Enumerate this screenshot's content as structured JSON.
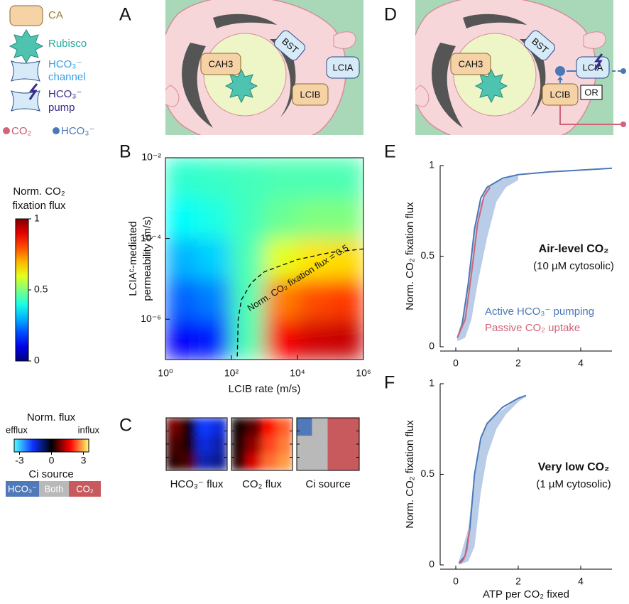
{
  "panel_labels": [
    "A",
    "B",
    "C",
    "D",
    "E",
    "F"
  ],
  "legend": {
    "ca": "CA",
    "rubisco": "Rubisco",
    "channel": [
      "HCO₃⁻",
      "channel"
    ],
    "pump": [
      "HCO₃⁻",
      "pump"
    ],
    "co2": "CO₂",
    "hco3": "HCO₃⁻"
  },
  "diagram_a": {
    "labels": [
      "CAH3",
      "BST",
      "LCIA",
      "LCIB"
    ]
  },
  "diagram_d": {
    "labels": [
      "CAH3",
      "BST",
      "LCIA",
      "LCIB"
    ],
    "or": "OR"
  },
  "colorbar": {
    "title": [
      "Norm. CO₂",
      "fixation flux"
    ],
    "lim": [
      0,
      1
    ],
    "ticks": [
      0,
      0.5,
      1
    ]
  },
  "flux_colorbar": {
    "title": "Norm. flux",
    "left": "efflux",
    "right": "influx",
    "lim": [
      -3.5,
      3.5
    ],
    "ticks": [
      -3,
      0,
      3
    ]
  },
  "ci_source": {
    "title": "Ci source",
    "categories": [
      "HCO₃⁻",
      "Both",
      "CO₂"
    ],
    "colors": [
      "#4f79b8",
      "#b9b9b9",
      "#c85a5e"
    ]
  },
  "chart_data": [
    {
      "type": "heatmap",
      "xlabel": "LCIB rate (m/s)",
      "ylabel": [
        "LCIAᶜ-mediated",
        "permeability (m/s)"
      ],
      "xlog": true,
      "ylog": true,
      "colormap": "jet",
      "xlim": [
        1,
        1000000
      ],
      "ylim": [
        1e-07,
        0.01
      ],
      "xticks": [
        {
          "value": 1,
          "label": "10⁰"
        },
        {
          "value": 100,
          "label": "10²"
        },
        {
          "value": 10000,
          "label": "10⁴"
        },
        {
          "value": 1000000,
          "label": "10⁶"
        }
      ],
      "yticks": [
        {
          "value": 1e-06,
          "label": "10⁻⁶"
        },
        {
          "value": 0.0001,
          "label": "10⁻⁴"
        },
        {
          "value": 0.01,
          "label": "10⁻²"
        }
      ],
      "x_edges": [
        1,
        10,
        100,
        1000,
        10000,
        100000,
        1000000
      ],
      "y_edges": [
        1e-07,
        1e-06,
        1e-05,
        0.0001,
        0.001,
        0.01
      ],
      "z": [
        [
          0.12,
          0.15,
          0.45,
          0.88,
          0.92,
          0.93
        ],
        [
          0.22,
          0.25,
          0.45,
          0.75,
          0.8,
          0.82
        ],
        [
          0.3,
          0.33,
          0.45,
          0.6,
          0.65,
          0.66
        ],
        [
          0.38,
          0.4,
          0.44,
          0.48,
          0.5,
          0.5
        ],
        [
          0.42,
          0.43,
          0.44,
          0.45,
          0.45,
          0.45
        ]
      ],
      "contour": {
        "label": "Norm. CO₂ fixation flux = 0.5",
        "x": [
          150,
          160,
          200,
          400,
          1000,
          10000,
          100000,
          1000000
        ],
        "y": [
          1.2e-07,
          1e-06,
          3e-06,
          8e-06,
          1.5e-05,
          3e-05,
          4.5e-05,
          5.5e-05
        ]
      }
    },
    {
      "type": "heatmap",
      "title": "HCO₃⁻ flux",
      "colormap": "diverging",
      "z": [
        [
          0.3,
          0.5,
          -1.2,
          -1.0
        ],
        [
          0.5,
          0.2,
          -1.5,
          -1.2
        ],
        [
          0.8,
          0.1,
          -1.8,
          -1.5
        ]
      ]
    },
    {
      "type": "heatmap",
      "title": "CO₂ flux",
      "colormap": "diverging",
      "z": [
        [
          0.3,
          1.5,
          2.5,
          2.8
        ],
        [
          0.2,
          1.0,
          2.2,
          2.6
        ],
        [
          0.1,
          0.6,
          1.8,
          2.4
        ]
      ]
    },
    {
      "type": "heatmap",
      "title": "Ci source",
      "colormap": "categorical",
      "z": [
        [
          1,
          1,
          2,
          2
        ],
        [
          1,
          1,
          2,
          2
        ],
        [
          0,
          1,
          2,
          2
        ]
      ]
    },
    {
      "type": "line",
      "ylabel": "Norm. CO₂ fixation flux",
      "annotation": [
        "Air-level CO₂",
        "(10 µM cytosolic)"
      ],
      "xlim": [
        -0.5,
        5
      ],
      "ylim": [
        0,
        1
      ],
      "xticks": [
        0,
        2,
        4
      ],
      "yticks": [
        0,
        0.5,
        1
      ],
      "band": {
        "color": "#b9cde8",
        "x": [
          0.05,
          0.3,
          0.5,
          0.7,
          1.0,
          1.3,
          1.6,
          2.0
        ],
        "lower": [
          0.03,
          0.05,
          0.15,
          0.35,
          0.6,
          0.8,
          0.88,
          0.92
        ],
        "upper": [
          0.06,
          0.2,
          0.5,
          0.75,
          0.88,
          0.91,
          0.93,
          0.95
        ]
      },
      "series": [
        {
          "name": "Active HCO₃⁻ pumping",
          "color": "#4a79b8",
          "x": [
            0.05,
            0.2,
            0.4,
            0.6,
            0.8,
            1.0,
            1.5,
            2,
            3,
            4,
            5
          ],
          "values": [
            0.05,
            0.12,
            0.35,
            0.65,
            0.82,
            0.88,
            0.93,
            0.95,
            0.965,
            0.975,
            0.985
          ]
        },
        {
          "name": "Passive CO₂ uptake",
          "color": "#d06478",
          "x": [
            0.05,
            0.3,
            0.5,
            0.7,
            0.9,
            1.1
          ],
          "values": [
            0.05,
            0.15,
            0.4,
            0.68,
            0.83,
            0.88
          ]
        }
      ]
    },
    {
      "type": "line",
      "ylabel": "Norm. CO₂ fixation flux",
      "xlabel": "ATP per CO₂ fixed",
      "annotation": [
        "Very low CO₂",
        "(1 µM cytosolic)"
      ],
      "xlim": [
        -0.5,
        5
      ],
      "ylim": [
        0,
        1
      ],
      "xticks": [
        0,
        2,
        4
      ],
      "yticks": [
        0,
        0.5,
        1
      ],
      "band": {
        "color": "#b9cde8",
        "x": [
          0.1,
          0.4,
          0.6,
          0.8,
          1.0,
          1.3,
          1.6,
          2.0,
          2.25
        ],
        "lower": [
          0,
          0.02,
          0.1,
          0.4,
          0.6,
          0.75,
          0.83,
          0.9,
          0.93
        ],
        "upper": [
          0.02,
          0.2,
          0.5,
          0.7,
          0.78,
          0.83,
          0.87,
          0.92,
          0.935
        ]
      },
      "series": [
        {
          "color": "#4a79b8",
          "x": [
            0.1,
            0.3,
            0.45,
            0.6,
            0.8,
            1.0,
            1.5,
            2.0,
            2.25
          ],
          "values": [
            0.01,
            0.05,
            0.2,
            0.5,
            0.7,
            0.78,
            0.87,
            0.92,
            0.935
          ]
        },
        {
          "color": "#d06478",
          "x": [
            0.15,
            0.25,
            0.35,
            0.45
          ],
          "values": [
            0.01,
            0.03,
            0.08,
            0.2
          ]
        }
      ]
    }
  ]
}
